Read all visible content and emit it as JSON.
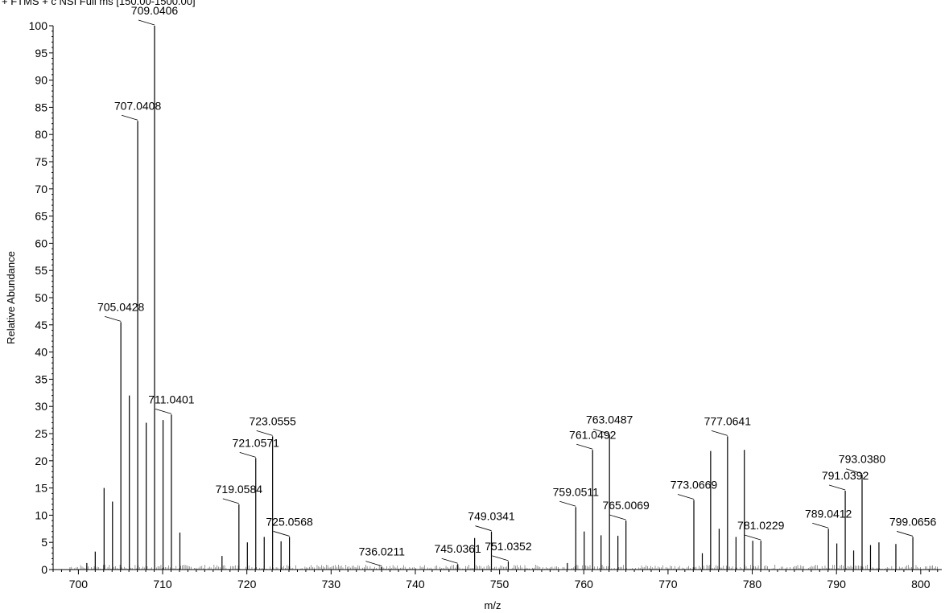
{
  "header": "+ FTMS + c NSI Full ms [150.00-1500.00]",
  "chart_data": {
    "type": "bar",
    "xlabel": "m/z",
    "ylabel": "Relative Abundance",
    "xlim": [
      697,
      802.5
    ],
    "ylim": [
      0,
      100
    ],
    "xticks": [
      700,
      710,
      720,
      730,
      740,
      750,
      760,
      770,
      780,
      790,
      800
    ],
    "yticks": [
      0,
      5,
      10,
      15,
      20,
      25,
      30,
      35,
      40,
      45,
      50,
      55,
      60,
      65,
      70,
      75,
      80,
      85,
      90,
      95,
      100
    ],
    "grid": false,
    "peaks": [
      {
        "mz": 701.0,
        "intensity": 1.2
      },
      {
        "mz": 702.0,
        "intensity": 3.3
      },
      {
        "mz": 703.05,
        "intensity": 15.0
      },
      {
        "mz": 704.05,
        "intensity": 12.5
      },
      {
        "mz": 705.0428,
        "intensity": 45.5,
        "label": "705.0428"
      },
      {
        "mz": 706.05,
        "intensity": 32.0
      },
      {
        "mz": 707.0408,
        "intensity": 82.5,
        "label": "707.0408"
      },
      {
        "mz": 708.05,
        "intensity": 27.0
      },
      {
        "mz": 709.0406,
        "intensity": 100.0,
        "label": "709.0406"
      },
      {
        "mz": 710.05,
        "intensity": 27.5
      },
      {
        "mz": 711.0401,
        "intensity": 28.5,
        "label": "711.0401"
      },
      {
        "mz": 712.05,
        "intensity": 6.8
      },
      {
        "mz": 717.05,
        "intensity": 2.5
      },
      {
        "mz": 719.0584,
        "intensity": 12.0,
        "label": "719.0584"
      },
      {
        "mz": 720.06,
        "intensity": 5.0
      },
      {
        "mz": 721.0571,
        "intensity": 20.5,
        "label": "721.0571"
      },
      {
        "mz": 722.06,
        "intensity": 6.0
      },
      {
        "mz": 723.0555,
        "intensity": 24.5,
        "label": "723.0555"
      },
      {
        "mz": 724.06,
        "intensity": 5.2
      },
      {
        "mz": 725.0568,
        "intensity": 6.0,
        "label": "725.0568"
      },
      {
        "mz": 736.0211,
        "intensity": 0.5,
        "label": "736.0211"
      },
      {
        "mz": 745.0361,
        "intensity": 1.0,
        "label": "745.0361"
      },
      {
        "mz": 747.04,
        "intensity": 5.8
      },
      {
        "mz": 749.0341,
        "intensity": 7.0,
        "label": "749.0341"
      },
      {
        "mz": 751.0352,
        "intensity": 1.5,
        "label": "751.0352"
      },
      {
        "mz": 758.05,
        "intensity": 1.2
      },
      {
        "mz": 759.0511,
        "intensity": 11.5,
        "label": "759.0511"
      },
      {
        "mz": 760.05,
        "intensity": 7.0
      },
      {
        "mz": 761.0492,
        "intensity": 22.0,
        "label": "761.0492"
      },
      {
        "mz": 762.05,
        "intensity": 6.3
      },
      {
        "mz": 763.0487,
        "intensity": 24.8,
        "label": "763.0487"
      },
      {
        "mz": 764.05,
        "intensity": 6.2
      },
      {
        "mz": 765.0069,
        "intensity": 9.0,
        "label": "765.0069"
      },
      {
        "mz": 773.0669,
        "intensity": 12.8,
        "label": "773.0669"
      },
      {
        "mz": 774.07,
        "intensity": 3.0
      },
      {
        "mz": 775.06,
        "intensity": 21.8
      },
      {
        "mz": 776.07,
        "intensity": 7.5
      },
      {
        "mz": 777.0641,
        "intensity": 24.5,
        "label": "777.0641"
      },
      {
        "mz": 778.07,
        "intensity": 6.0
      },
      {
        "mz": 779.06,
        "intensity": 22.0
      },
      {
        "mz": 780.06,
        "intensity": 5.3
      },
      {
        "mz": 781.0229,
        "intensity": 5.3,
        "label": "781.0229"
      },
      {
        "mz": 789.0412,
        "intensity": 7.5,
        "label": "789.0412"
      },
      {
        "mz": 790.04,
        "intensity": 4.8
      },
      {
        "mz": 791.0392,
        "intensity": 14.5,
        "label": "791.0392"
      },
      {
        "mz": 792.04,
        "intensity": 3.5
      },
      {
        "mz": 793.038,
        "intensity": 17.5,
        "label": "793.0380"
      },
      {
        "mz": 794.04,
        "intensity": 4.5
      },
      {
        "mz": 795.04,
        "intensity": 5.0
      },
      {
        "mz": 797.05,
        "intensity": 4.7
      },
      {
        "mz": 799.0656,
        "intensity": 6.0,
        "label": "799.0656"
      }
    ]
  }
}
